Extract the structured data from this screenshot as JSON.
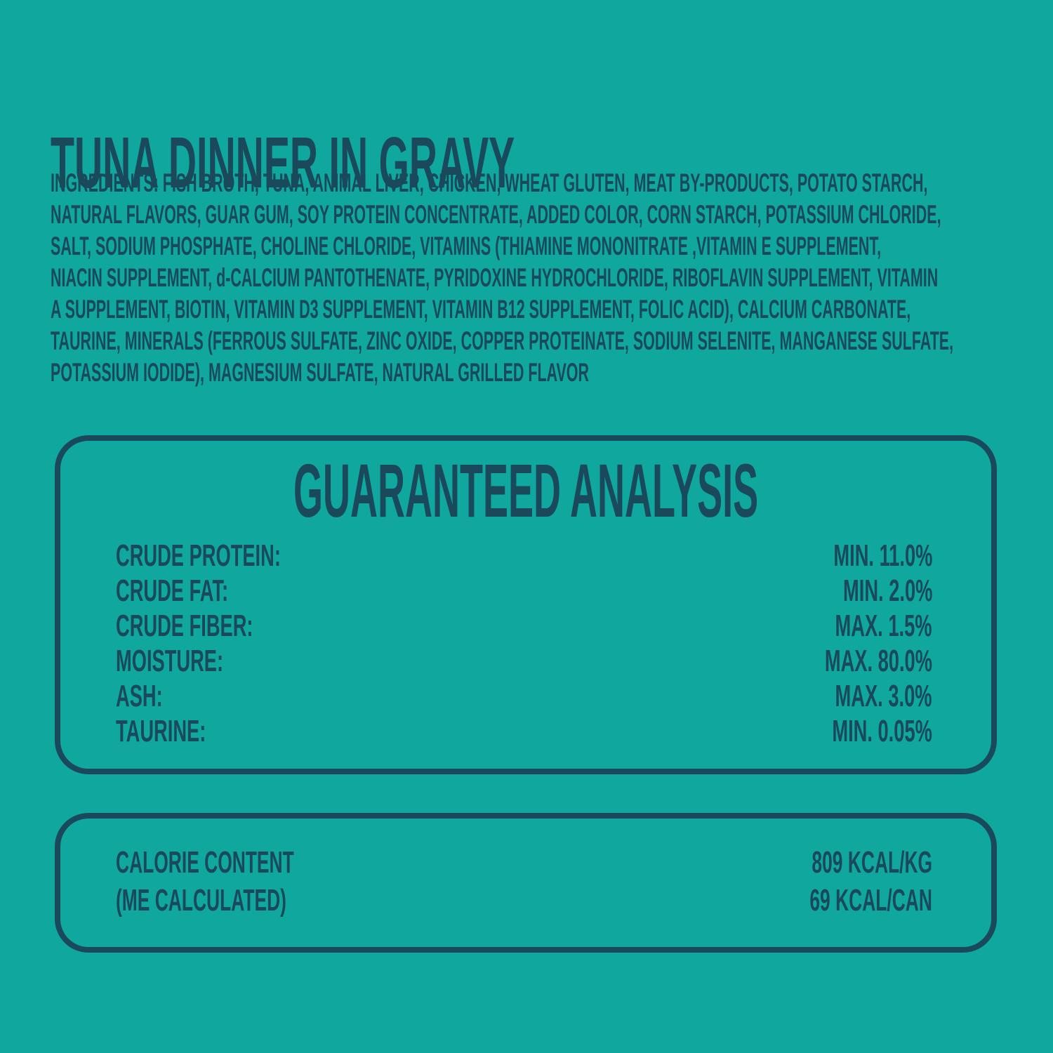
{
  "colors": {
    "background": "#10A79F",
    "ink": "#1A495C"
  },
  "title": "TUNA DINNER IN GRAVY",
  "ingredients": {
    "lines": [
      "INGREDIENTS: FISH BROTH, TUNA, ANIMAL LIVER, CHICKEN, WHEAT GLUTEN, MEAT BY-PRODUCTS, POTATO STARCH,",
      "NATURAL FLAVORS, GUAR GUM, SOY PROTEIN CONCENTRATE, ADDED COLOR, CORN STARCH, POTASSIUM CHLORIDE,",
      "SALT, SODIUM PHOSPHATE, CHOLINE CHLORIDE, VITAMINS (THIAMINE MONONITRATE ,VITAMIN E SUPPLEMENT,",
      "NIACIN SUPPLEMENT, d-CALCIUM PANTOTHENATE, PYRIDOXINE HYDROCHLORIDE, RIBOFLAVIN SUPPLEMENT, VITAMIN",
      "A SUPPLEMENT, BIOTIN, VITAMIN D3 SUPPLEMENT, VITAMIN B12 SUPPLEMENT, FOLIC ACID), CALCIUM CARBONATE,",
      "TAURINE, MINERALS (FERROUS SULFATE, ZINC OXIDE, COPPER PROTEINATE, SODIUM SELENITE, MANGANESE SULFATE,",
      "POTASSIUM IODIDE), MAGNESIUM SULFATE, NATURAL GRILLED FLAVOR"
    ]
  },
  "analysis": {
    "heading": "GUARANTEED ANALYSIS",
    "rows": [
      {
        "label": "CRUDE PROTEIN:",
        "value": "MIN. 11.0%"
      },
      {
        "label": "CRUDE FAT:",
        "value": "MIN. 2.0%"
      },
      {
        "label": "CRUDE FIBER:",
        "value": "MAX. 1.5%"
      },
      {
        "label": "MOISTURE:",
        "value": "MAX. 80.0%"
      },
      {
        "label": "ASH:",
        "value": "MAX. 3.0%"
      },
      {
        "label": "TAURINE:",
        "value": "MIN. 0.05%"
      }
    ]
  },
  "calories": {
    "label_line1": "CALORIE CONTENT",
    "label_line2": "(ME CALCULATED)",
    "value_line1": "809 KCAL/KG",
    "value_line2": "69 KCAL/CAN"
  }
}
